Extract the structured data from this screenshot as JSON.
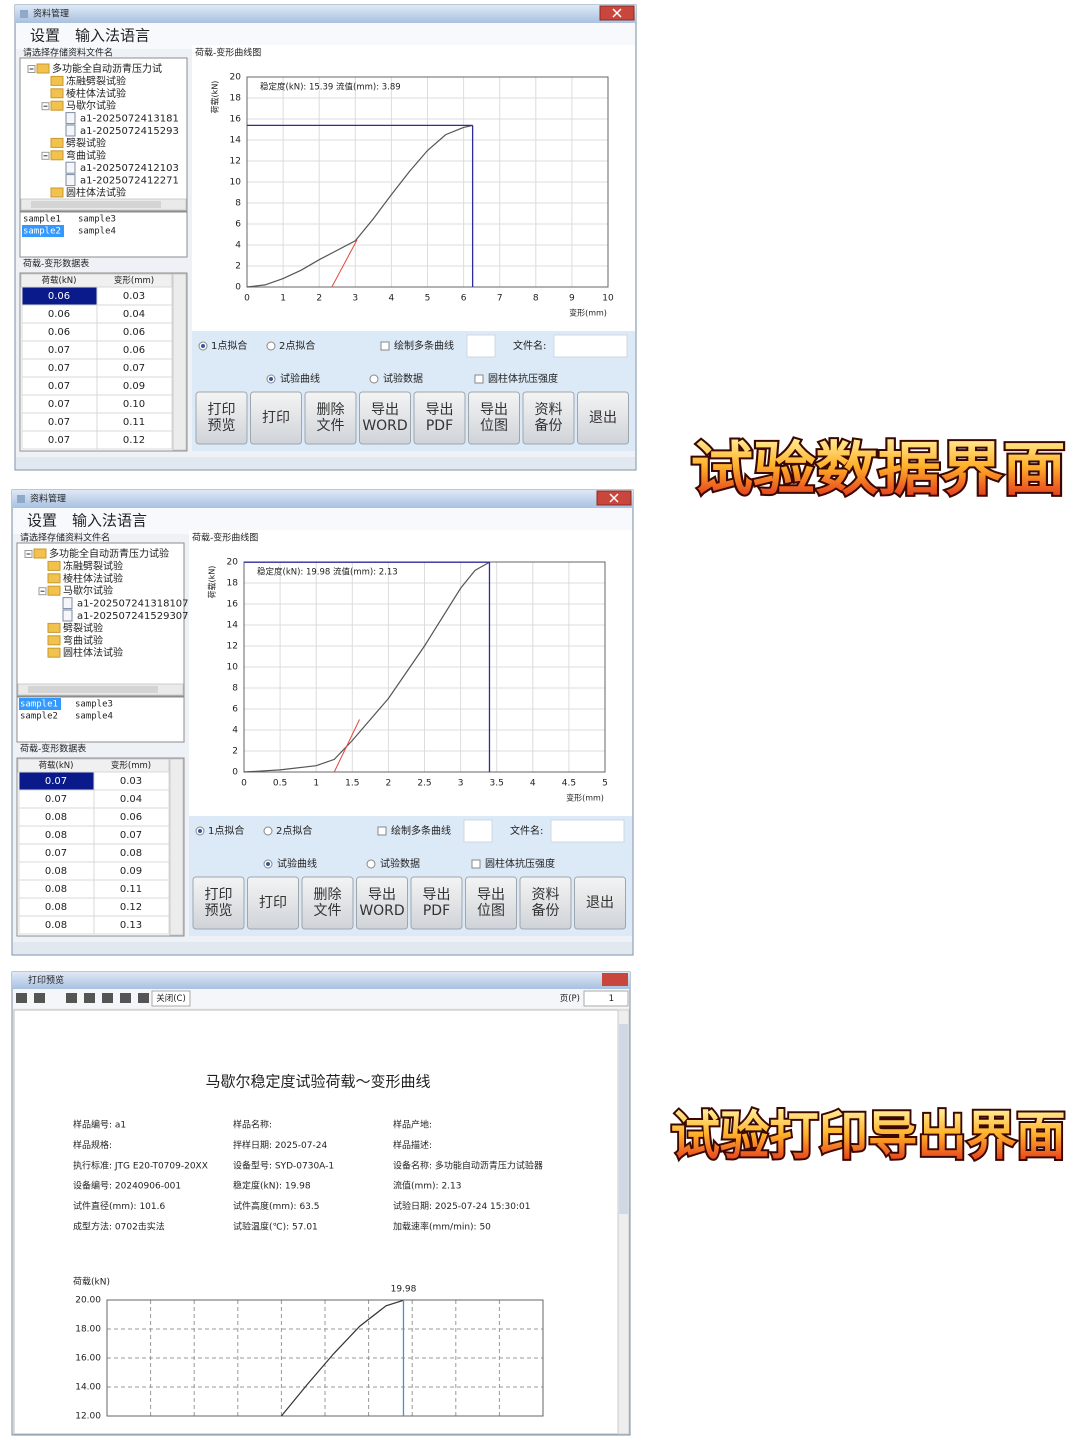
{
  "window1": {
    "title": "资料管理",
    "menu": [
      "设置",
      "输入法语言"
    ],
    "tree_label": "请选择存储资料文件名",
    "tree": {
      "label": "多功能全自动沥青压力试",
      "children": [
        {
          "label": "冻融劈裂试验"
        },
        {
          "label": "棱柱体法试验"
        },
        {
          "label": "马歇尔试验",
          "children": [
            {
              "label": "a1-2025072413181"
            },
            {
              "label": "a1-2025072415293"
            }
          ]
        },
        {
          "label": "劈裂试验"
        },
        {
          "label": "弯曲试验",
          "children": [
            {
              "label": "a1-2025072412103"
            },
            {
              "label": "a1-2025072412271"
            }
          ]
        },
        {
          "label": "圆柱体法试验"
        }
      ]
    },
    "samples": [
      {
        "label": "sample1",
        "selected": false
      },
      {
        "label": "sample3",
        "selected": false
      },
      {
        "label": "sample2",
        "selected": true
      },
      {
        "label": "sample4",
        "selected": false
      }
    ],
    "table": {
      "label": "荷载-变形数据表",
      "header": [
        "荷载(kN)",
        "变形(mm)"
      ],
      "rows": [
        [
          "0.06",
          "0.03"
        ],
        [
          "0.06",
          "0.04"
        ],
        [
          "0.06",
          "0.06"
        ],
        [
          "0.07",
          "0.06"
        ],
        [
          "0.07",
          "0.07"
        ],
        [
          "0.07",
          "0.09"
        ],
        [
          "0.07",
          "0.10"
        ],
        [
          "0.07",
          "0.11"
        ],
        [
          "0.07",
          "0.12"
        ]
      ]
    },
    "chart": {
      "type": "line",
      "title": "荷载-变形曲线图",
      "ylabel": "荷载(kN)",
      "xlabel": "变形(mm)",
      "annotation": "稳定度(kN): 15.39  流值(mm): 3.89",
      "x": [
        0,
        0.5,
        1,
        1.5,
        2,
        2.5,
        3,
        3.5,
        4,
        4.5,
        5,
        5.5,
        6,
        6.25
      ],
      "values": [
        0,
        0.2,
        0.8,
        1.6,
        2.6,
        3.5,
        4.4,
        6.5,
        8.8,
        11,
        13,
        14.5,
        15.2,
        15.39
      ],
      "tangent": {
        "x": [
          2.35,
          3.05
        ],
        "values": [
          0,
          4.5
        ]
      },
      "peak": {
        "x": 6.25,
        "y": 15.39
      },
      "color": "#555555",
      "xlim": [
        0,
        10
      ],
      "ylim": [
        0,
        20
      ],
      "xticks": [
        0,
        1,
        2,
        3,
        4,
        5,
        6,
        7,
        8,
        9,
        10
      ],
      "yticks": [
        0,
        2,
        4,
        6,
        8,
        10,
        12,
        14,
        16,
        18,
        20
      ],
      "grid": true
    },
    "options": [
      "1点拟合",
      "2点拟合",
      "绘制多条曲线",
      "文件名:"
    ],
    "options2": [
      "试验曲线",
      "试验数据",
      "圆柱体抗压强度"
    ],
    "buttons": [
      [
        "打印",
        "预览"
      ],
      [
        "打印"
      ],
      [
        "删除",
        "文件"
      ],
      [
        "导出",
        "WORD"
      ],
      [
        "导出",
        "PDF"
      ],
      [
        "导出",
        "位图"
      ],
      [
        "资料",
        "备份"
      ],
      [
        "退出"
      ]
    ]
  },
  "window2": {
    "title": "资料管理",
    "menu": [
      "设置",
      "输入法语言"
    ],
    "tree_label": "请选择存储资料文件名",
    "tree": {
      "label": "多功能全自动沥青压力试验",
      "children": [
        {
          "label": "冻融劈裂试验"
        },
        {
          "label": "棱柱体法试验"
        },
        {
          "label": "马歇尔试验",
          "children": [
            {
              "label": "a1-202507241318107"
            },
            {
              "label": "a1-202507241529307"
            }
          ]
        },
        {
          "label": "劈裂试验"
        },
        {
          "label": "弯曲试验"
        },
        {
          "label": "圆柱体法试验"
        }
      ]
    },
    "samples": [
      {
        "label": "sample1",
        "selected": true
      },
      {
        "label": "sample3",
        "selected": false
      },
      {
        "label": "sample2",
        "selected": false
      },
      {
        "label": "sample4",
        "selected": false
      }
    ],
    "table": {
      "label": "荷载-变形数据表",
      "header": [
        "荷载(kN)",
        "变形(mm)"
      ],
      "rows": [
        [
          "0.07",
          "0.03"
        ],
        [
          "0.07",
          "0.04"
        ],
        [
          "0.08",
          "0.06"
        ],
        [
          "0.08",
          "0.07"
        ],
        [
          "0.07",
          "0.08"
        ],
        [
          "0.08",
          "0.09"
        ],
        [
          "0.08",
          "0.11"
        ],
        [
          "0.08",
          "0.12"
        ],
        [
          "0.08",
          "0.13"
        ]
      ]
    },
    "chart": {
      "type": "line",
      "title": "荷载-变形曲线图",
      "ylabel": "荷载(kN)",
      "xlabel": "变形(mm)",
      "annotation": "稳定度(kN): 19.98  流值(mm): 2.13",
      "x": [
        0,
        0.5,
        1,
        1.25,
        1.5,
        2,
        2.5,
        3,
        3.2,
        3.4
      ],
      "values": [
        0,
        0.2,
        0.6,
        1.2,
        3,
        7,
        12,
        17.5,
        19.2,
        19.98
      ],
      "tangent": {
        "x": [
          1.25,
          1.6
        ],
        "values": [
          0,
          5
        ]
      },
      "peak": {
        "x": 3.4,
        "y": 19.98
      },
      "color": "#555555",
      "xlim": [
        0,
        5
      ],
      "ylim": [
        0,
        20
      ],
      "xticks": [
        0,
        0.5,
        1,
        1.5,
        2,
        2.5,
        3,
        3.5,
        4,
        4.5,
        5
      ],
      "yticks": [
        0,
        2,
        4,
        6,
        8,
        10,
        12,
        14,
        16,
        18,
        20
      ],
      "grid": true
    },
    "options": [
      "1点拟合",
      "2点拟合",
      "绘制多条曲线",
      "文件名:"
    ],
    "options2": [
      "试验曲线",
      "试验数据",
      "圆柱体抗压强度"
    ],
    "buttons": [
      [
        "打印",
        "预览"
      ],
      [
        "打印"
      ],
      [
        "删除",
        "文件"
      ],
      [
        "导出",
        "WORD"
      ],
      [
        "导出",
        "PDF"
      ],
      [
        "导出",
        "位图"
      ],
      [
        "资料",
        "备份"
      ],
      [
        "退出"
      ]
    ]
  },
  "preview": {
    "title": "打印预览",
    "close": "关闭(C)",
    "page_label": "页(P)",
    "page": 1,
    "doc_title": "马歇尔稳定度试验荷载～变形曲线",
    "fields": [
      [
        "样品编号: a1",
        "样品名称:",
        "样品产地:"
      ],
      [
        "样品规格:",
        "拌样日期: 2025-07-24",
        "样品描述:"
      ],
      [
        "执行标准: JTG E20-T0709-20XX",
        "设备型号: SYD-0730A-1",
        "设备名称: 多功能自动沥青压力试验器"
      ],
      [
        "设备编号: 20240906-001",
        "稳定度(kN): 19.98",
        "流值(mm): 2.13"
      ],
      [
        "试件直径(mm): 101.6",
        "试件高度(mm): 63.5",
        "试验日期: 2025-07-24 15:30:01"
      ],
      [
        "成型方法: 0702击实法",
        "试验温度(℃): 57.01",
        "加载速率(mm/min): 50"
      ]
    ],
    "chart": {
      "type": "line",
      "ylabel": "荷载(kN)",
      "x": [
        2.0,
        2.3,
        2.6,
        2.9,
        3.2,
        3.4
      ],
      "values": [
        12,
        14.2,
        16.3,
        18.2,
        19.6,
        19.98
      ],
      "peak": {
        "x": 3.4,
        "y": 19.98
      },
      "color": "#333333",
      "xlim": [
        0,
        5
      ],
      "ylim": [
        12,
        20
      ],
      "yticks": [
        {
          "value": 12,
          "label": "12.00"
        },
        {
          "value": 14,
          "label": "14.00"
        },
        {
          "value": 16,
          "label": "16.00"
        },
        {
          "value": 18,
          "label": "18.00"
        },
        {
          "value": 20,
          "label": "20.00"
        }
      ]
    }
  },
  "captions": [
    "试验数据界面",
    "试验打印导出界面"
  ]
}
